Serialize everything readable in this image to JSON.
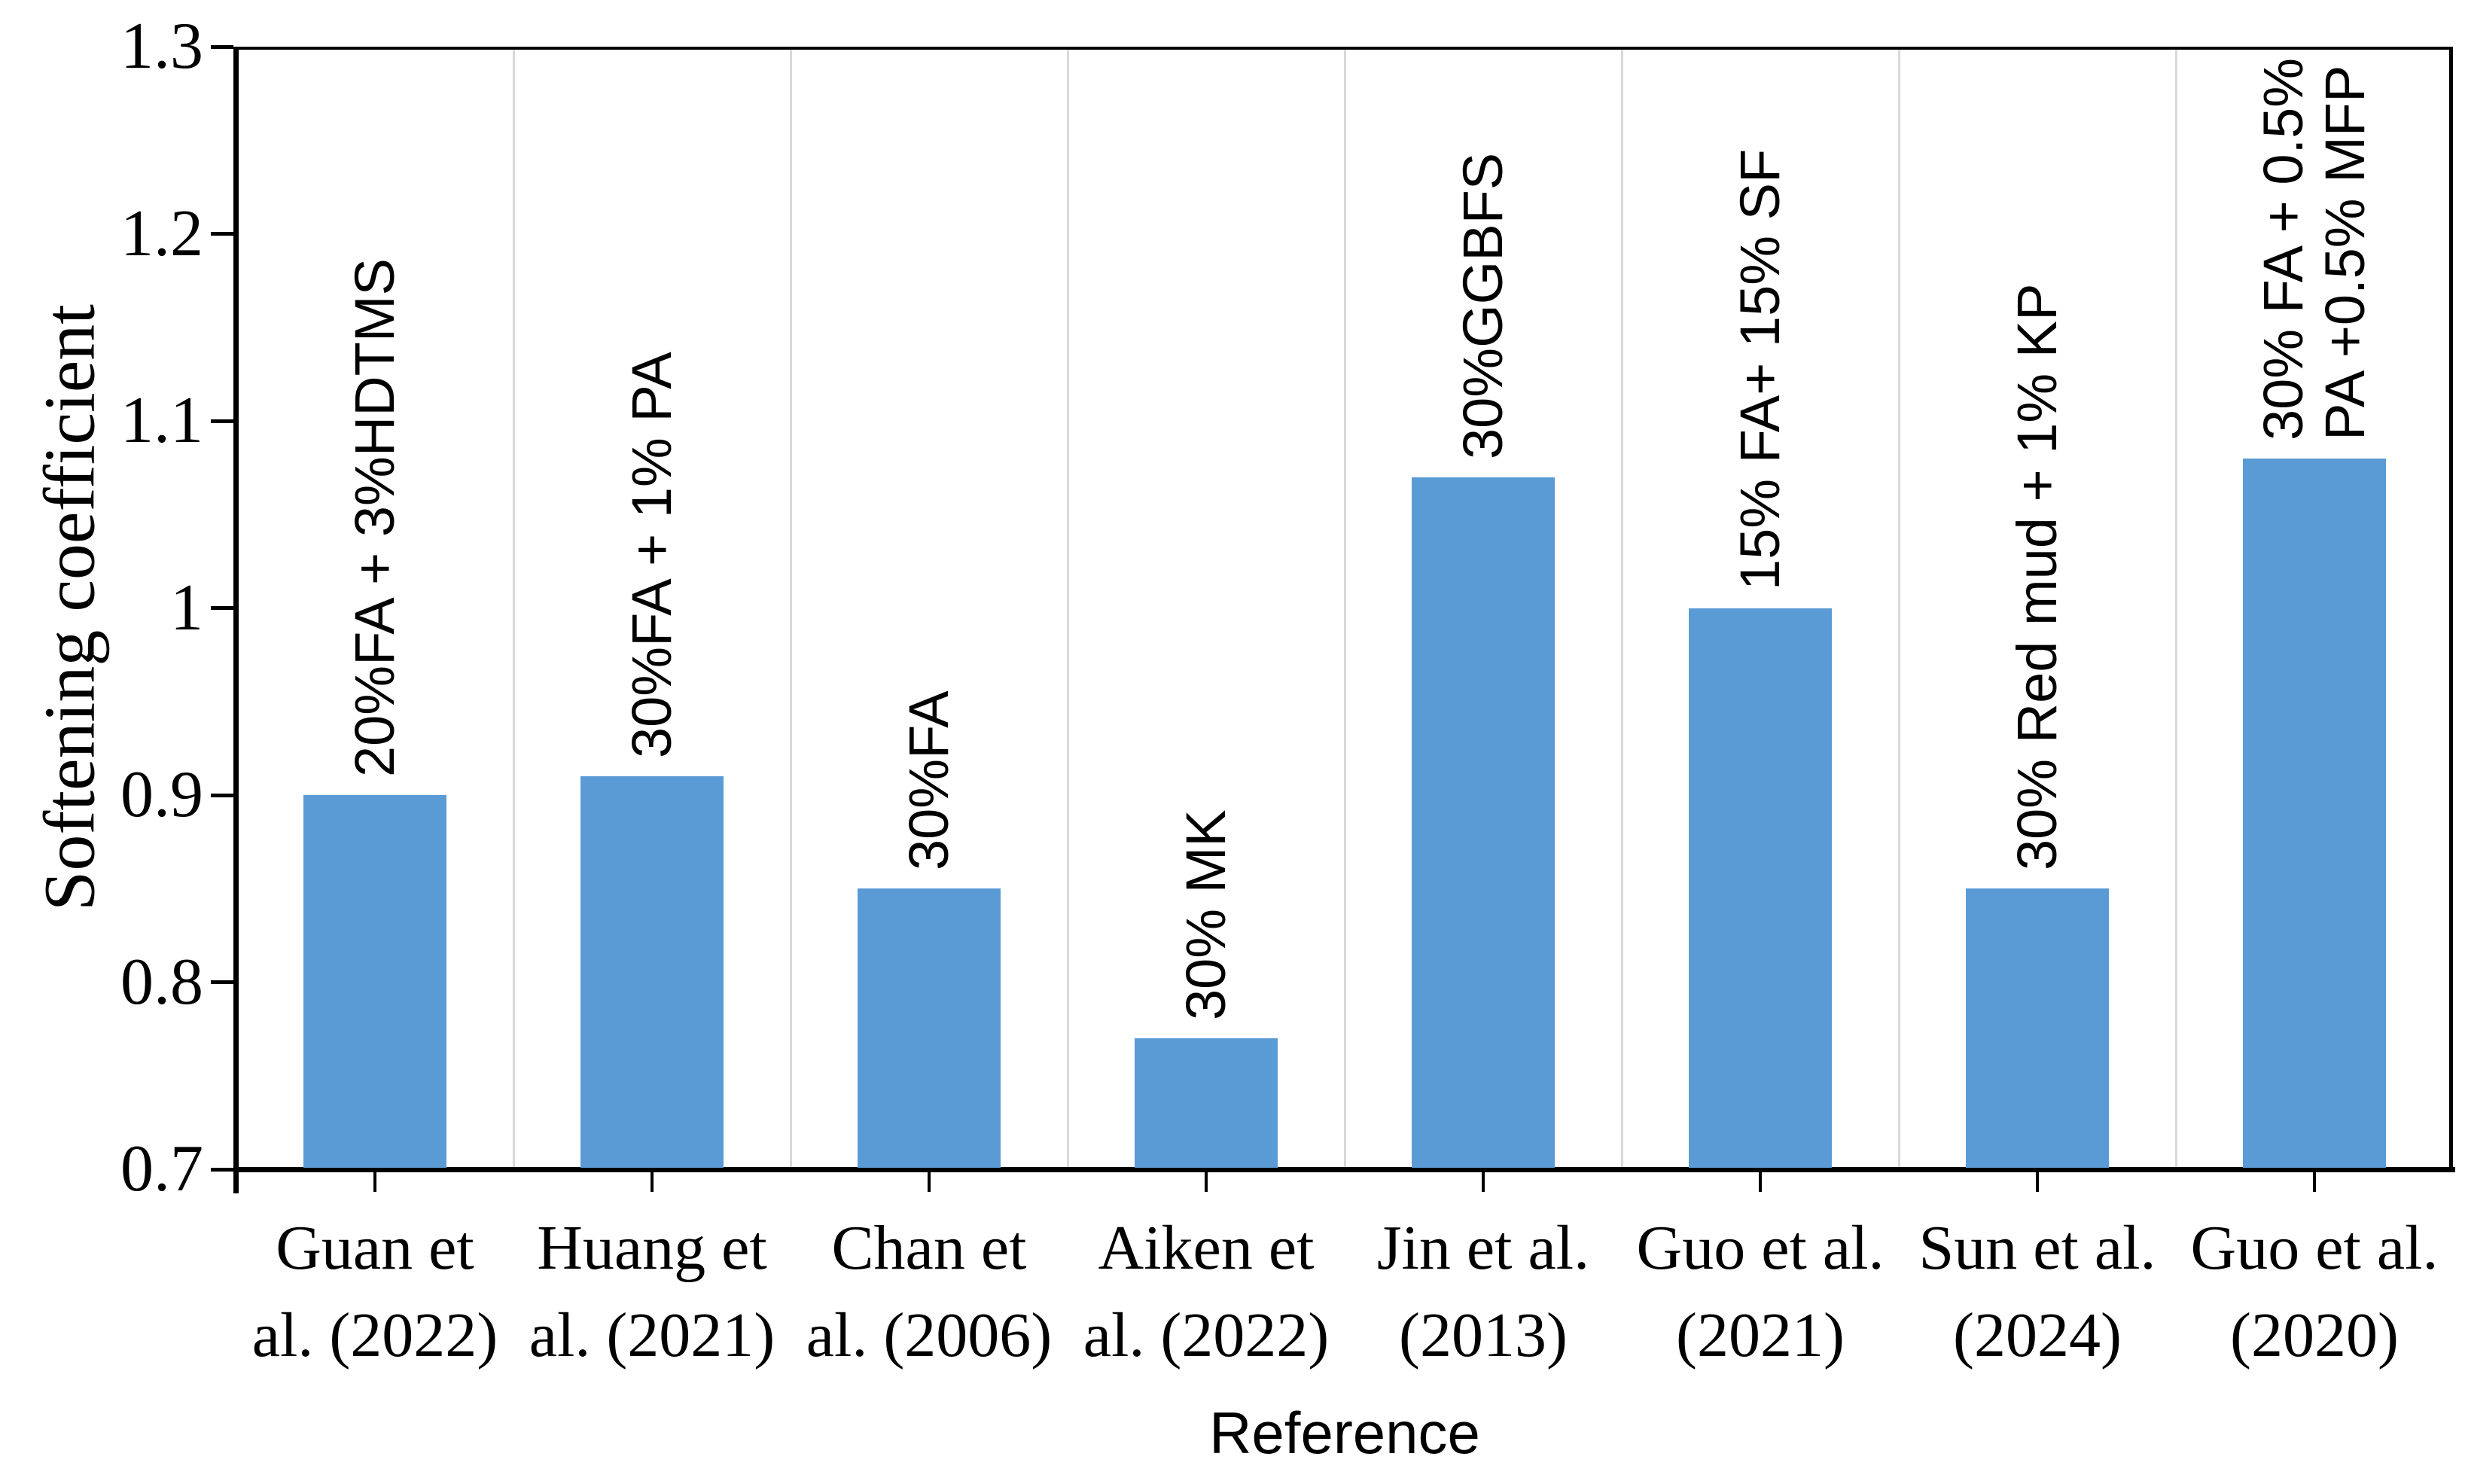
{
  "figure": {
    "background": "#ffffff",
    "text_color": "#000000"
  },
  "chart_data": {
    "type": "bar",
    "title": "",
    "xlabel": "Reference",
    "ylabel": "Softening coefficient",
    "categories": [
      "Guan et al. (2022)",
      "Huang et al. (2021)",
      "Chan et al. (2006)",
      "Aiken et al. (2022)",
      "Jin et al. (2013)",
      "Guo et al. (2021)",
      "Sun et al. (2024)",
      "Guo et al. (2020)"
    ],
    "category_label_lines": [
      [
        "Guan et",
        "al. (2022)"
      ],
      [
        "Huang et",
        "al. (2021)"
      ],
      [
        "Chan et",
        "al. (2006)"
      ],
      [
        "Aiken et",
        "al. (2022)"
      ],
      [
        "Jin et al.",
        "(2013)"
      ],
      [
        "Guo et al.",
        "(2021)"
      ],
      [
        "Sun et al.",
        "(2024)"
      ],
      [
        "Guo et al.",
        "(2020)"
      ]
    ],
    "values": [
      0.9,
      0.91,
      0.85,
      0.77,
      1.07,
      1.0,
      0.85,
      1.08
    ],
    "bar_labels": [
      [
        "20%FA + 3%HDTMS"
      ],
      [
        "30%FA + 1% PA"
      ],
      [
        "30%FA"
      ],
      [
        "30% MK"
      ],
      [
        "30%GGBFS"
      ],
      [
        "15% FA+ 15% SF"
      ],
      [
        "30% Red mud + 1% KP"
      ],
      [
        "30% FA + 0.5%",
        "PA +0.5% MFP"
      ]
    ],
    "ylim": [
      0.7,
      1.3
    ],
    "ytick_step": 0.1,
    "ytick_labels": [
      "1.3",
      "1.2",
      "1.1",
      "1",
      "0.9",
      "0.8",
      "0.7"
    ],
    "bar_color": "#5b9bd5",
    "gridline_color": "#d9d9d9",
    "axis_color": "#000000",
    "legend": "none",
    "grid": "vertical lines at category boundaries"
  }
}
